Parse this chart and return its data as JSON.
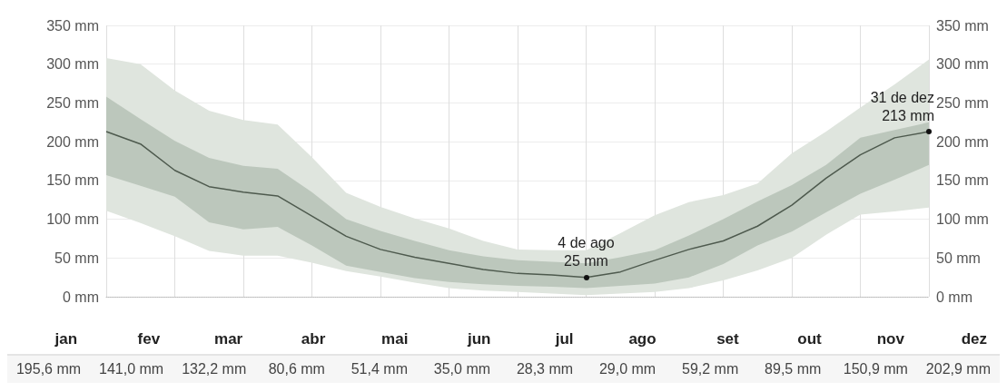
{
  "chart_data": [
    {
      "type": "line",
      "categories": [
        null,
        null,
        null,
        null,
        null,
        null,
        null,
        null,
        null,
        null,
        null,
        null,
        null,
        null,
        null,
        null,
        null,
        null,
        null,
        null,
        null,
        null,
        null,
        null,
        null
      ],
      "ylim": [
        0,
        350
      ],
      "yticks": [
        {
          "value": 0,
          "label": "0 mm"
        },
        {
          "value": 50,
          "label": "50 mm"
        },
        {
          "value": 100,
          "label": "100 mm"
        },
        {
          "value": 150,
          "label": "150 mm"
        },
        {
          "value": 200,
          "label": "200 mm"
        },
        {
          "value": 250,
          "label": "250 mm"
        },
        {
          "value": 300,
          "label": "300 mm"
        },
        {
          "value": 350,
          "label": "350 mm"
        }
      ],
      "y2lim": [
        0,
        350
      ],
      "y2ticks": [
        {
          "value": 0,
          "label": "0 mm"
        },
        {
          "value": 50,
          "label": "50 mm"
        },
        {
          "value": 100,
          "label": "100 mm"
        },
        {
          "value": 150,
          "label": "150 mm"
        },
        {
          "value": 200,
          "label": "200 mm"
        },
        {
          "value": 250,
          "label": "250 mm"
        },
        {
          "value": 300,
          "label": "300 mm"
        },
        {
          "value": 350,
          "label": "350 mm"
        }
      ],
      "grid": true,
      "marker": "none",
      "line_style": "solid",
      "series": [
        {
          "color": "#dfe5de",
          "values": [
            null,
            null,
            null,
            null,
            null,
            null,
            null,
            null,
            null,
            null,
            null,
            null,
            null,
            null,
            null,
            null,
            null,
            null,
            null,
            null,
            null,
            null,
            null,
            null,
            null
          ],
          "lower": [
            111,
            95,
            78,
            59,
            53,
            53,
            44,
            33,
            26,
            18,
            11,
            8,
            6,
            4,
            2,
            4,
            6,
            11,
            21,
            34,
            50,
            80,
            106,
            110,
            115
          ],
          "upper": [
            308,
            300,
            266,
            240,
            228,
            222,
            180,
            134,
            116,
            101,
            88,
            72,
            61,
            60,
            60,
            82,
            105,
            122,
            131,
            146,
            185,
            213,
            244,
            274,
            306
          ]
        },
        {
          "color": "#bcc7bc",
          "values": [
            null,
            null,
            null,
            null,
            null,
            null,
            null,
            null,
            null,
            null,
            null,
            null,
            null,
            null,
            null,
            null,
            null,
            null,
            null,
            null,
            null,
            null,
            null,
            null,
            null
          ],
          "lower": [
            157,
            143,
            129,
            96,
            87,
            90,
            66,
            40,
            32,
            24,
            19,
            16,
            14,
            13,
            11,
            14,
            17,
            25,
            42,
            66,
            84,
            109,
            133,
            151,
            170
          ],
          "upper": [
            258,
            229,
            201,
            179,
            169,
            165,
            135,
            100,
            85,
            72,
            60,
            52,
            47,
            45,
            43,
            51,
            60,
            79,
            100,
            123,
            144,
            170,
            205,
            215,
            225
          ]
        },
        {
          "color": "#4e5a4e",
          "values": [
            213,
            197,
            163,
            142,
            135,
            130,
            104,
            78,
            61,
            51,
            43,
            35,
            30,
            28,
            25,
            32,
            47,
            61,
            72,
            91,
            118,
            153,
            183,
            205,
            213
          ]
        }
      ],
      "annotations": [
        {
          "text": "4 de ago\n25 mm",
          "y": 25
        },
        {
          "text": "31 de dez\n213 mm",
          "y": 213
        }
      ]
    },
    {
      "type": "other",
      "categories": [
        "jan",
        "fev",
        "mar",
        "abr",
        "mai",
        "jun",
        "jul",
        "ago",
        "set",
        "out",
        "nov",
        "dez"
      ],
      "value_labels": [
        "195,6 mm",
        "141,0 mm",
        "132,2 mm",
        "80,6 mm",
        "51,4 mm",
        "35,0 mm",
        "28,3 mm",
        "29,0 mm",
        "59,2 mm",
        "89,5 mm",
        "150,9 mm",
        "202,9 mm"
      ]
    }
  ]
}
